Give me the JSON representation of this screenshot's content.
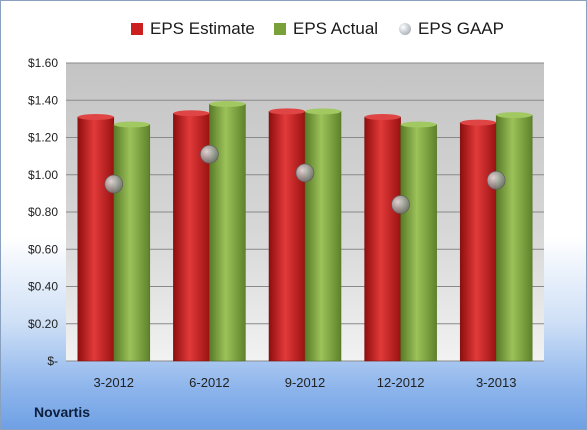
{
  "brand": "Novartis",
  "colors": {
    "estimate": "#cc1f1f",
    "actual": "#7aa03a",
    "gaap": "#9aa4ae"
  },
  "chart_data": {
    "type": "bar",
    "categories": [
      "3-2012",
      "6-2012",
      "9-2012",
      "12-2012",
      "3-2013"
    ],
    "series": [
      {
        "name": "EPS Estimate",
        "kind": "bar",
        "values": [
          1.31,
          1.33,
          1.34,
          1.31,
          1.28
        ]
      },
      {
        "name": "EPS Actual",
        "kind": "bar",
        "values": [
          1.27,
          1.38,
          1.34,
          1.27,
          1.32
        ]
      },
      {
        "name": "EPS GAAP",
        "kind": "scatter",
        "values": [
          0.95,
          1.11,
          1.01,
          0.84,
          0.97
        ]
      }
    ],
    "yticks": [
      0,
      0.2,
      0.4,
      0.6,
      0.8,
      1.0,
      1.2,
      1.4,
      1.6
    ],
    "ytick_labels": [
      "$-",
      "$0.20",
      "$0.40",
      "$0.60",
      "$0.80",
      "$1.00",
      "$1.20",
      "$1.40",
      "$1.60"
    ],
    "ylim": [
      0,
      1.6
    ],
    "grid": true,
    "legend": "top"
  }
}
